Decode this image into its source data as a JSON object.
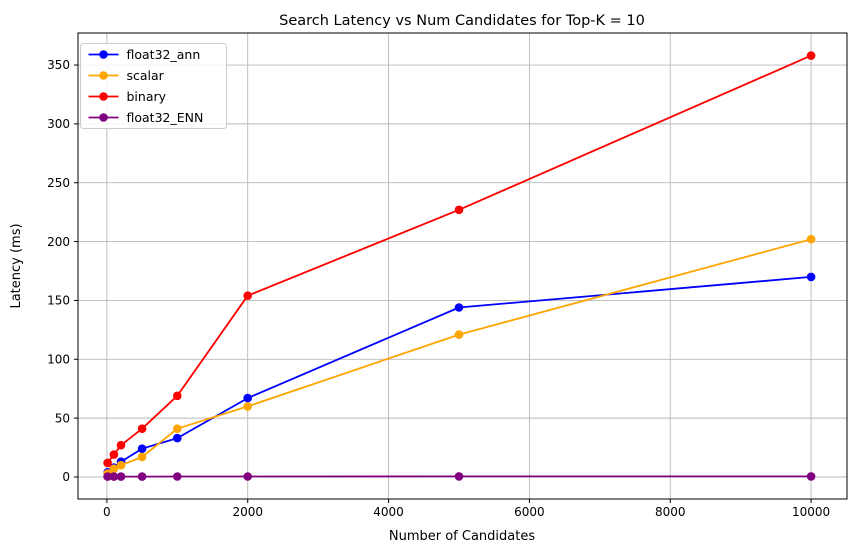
{
  "chart_data": {
    "type": "line",
    "title": "Search Latency vs Num Candidates for Top-K = 10",
    "xlabel": "Number of Candidates",
    "ylabel": "Latency (ms)",
    "x": [
      10,
      100,
      200,
      500,
      1000,
      2000,
      5000,
      10000
    ],
    "series": [
      {
        "name": "float32_ann",
        "color": "#0000ff",
        "values": [
          4,
          8,
          13,
          24,
          33,
          67,
          144,
          170
        ]
      },
      {
        "name": "scalar",
        "color": "#ffa500",
        "values": [
          3,
          7,
          10,
          17,
          41,
          60,
          121,
          202
        ]
      },
      {
        "name": "binary",
        "color": "#ff0000",
        "values": [
          12,
          19,
          27,
          41,
          69,
          154,
          227,
          358
        ]
      },
      {
        "name": "float32_ENN",
        "color": "#800080",
        "values": [
          0.3,
          0.3,
          0.3,
          0.3,
          0.4,
          0.4,
          0.5,
          0.5
        ]
      }
    ],
    "x_ticks": [
      0,
      2000,
      4000,
      6000,
      8000,
      10000
    ],
    "y_ticks": [
      0,
      50,
      100,
      150,
      200,
      250,
      300,
      350
    ],
    "xlim": [
      -410,
      10510
    ],
    "ylim": [
      -18.7,
      377.2
    ],
    "grid": true,
    "grid_color": "#b8b8b8",
    "spine_color": "#000000",
    "legend_position": "upper left"
  }
}
